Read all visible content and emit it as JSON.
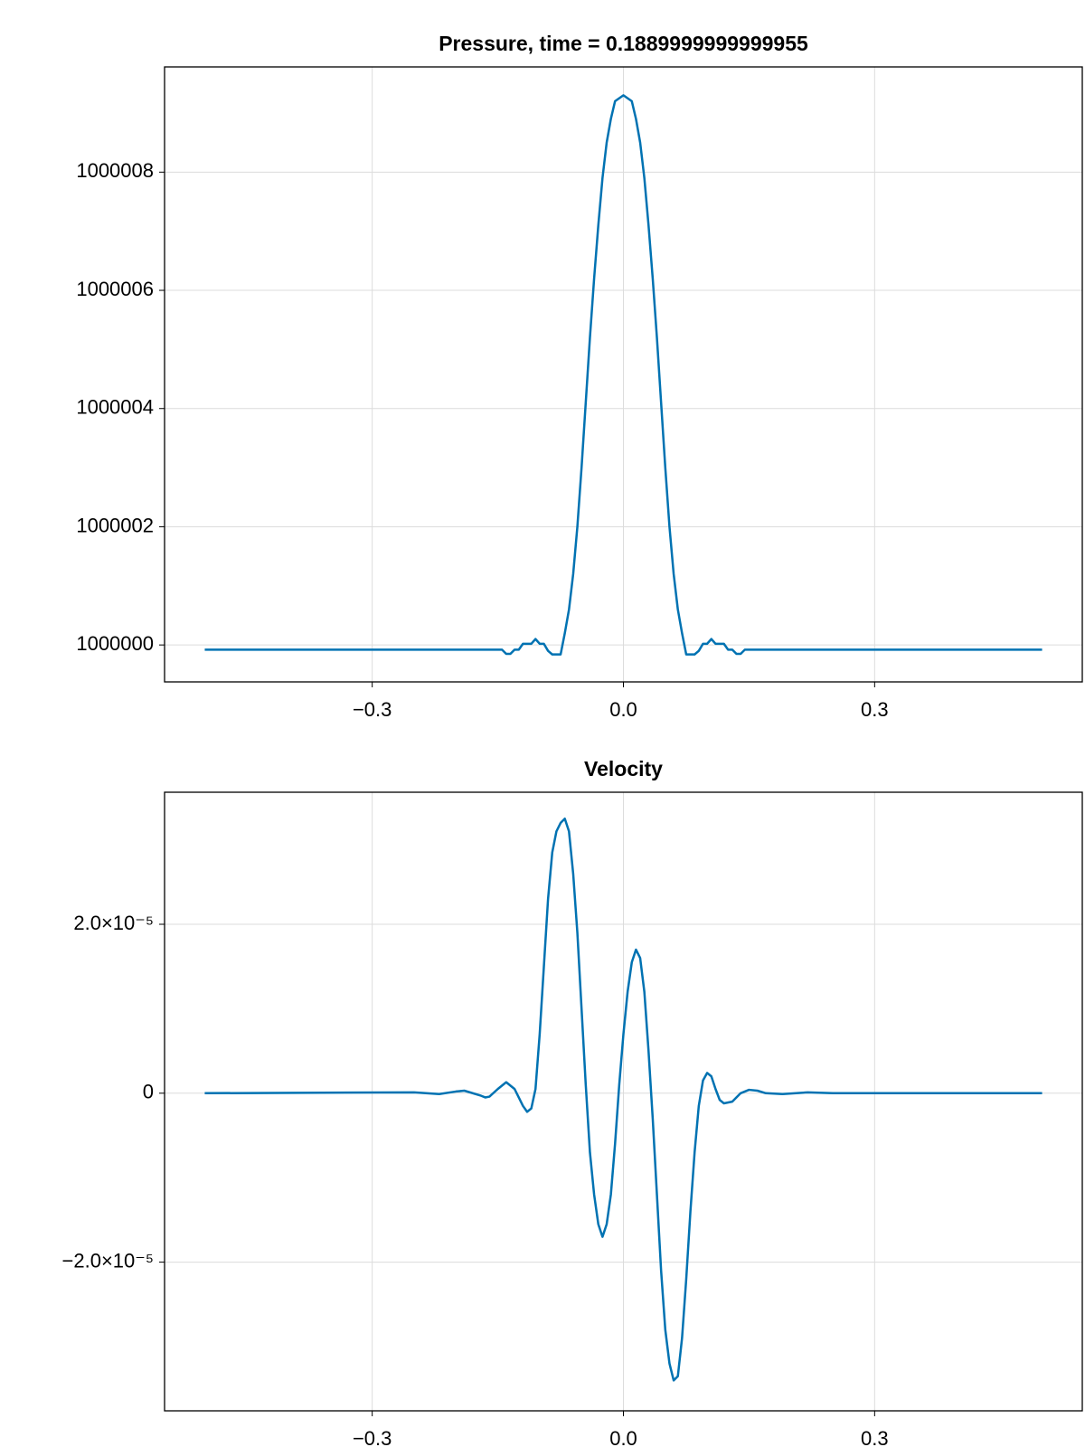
{
  "chart_data": [
    {
      "type": "line",
      "title": "Pressure, time = 0.1889999999999955",
      "color": "#0072b2",
      "grid": true,
      "xlim": [
        -0.548,
        0.548
      ],
      "xticks": [
        {
          "value": -0.3,
          "label": "−0.3"
        },
        {
          "value": 0,
          "label": "0.0"
        },
        {
          "value": 0.3,
          "label": "0.3"
        }
      ],
      "ylim": [
        999999.375,
        1000009.78
      ],
      "yticks": [
        1000000,
        1000002,
        1000004,
        1000006,
        1000008
      ],
      "x": [
        -0.5,
        -0.15,
        -0.145,
        -0.14,
        -0.135,
        -0.13,
        -0.125,
        -0.12,
        -0.115,
        -0.11,
        -0.105,
        -0.1,
        -0.095,
        -0.09,
        -0.085,
        -0.08,
        -0.075,
        -0.07,
        -0.065,
        -0.06,
        -0.055,
        -0.05,
        -0.045,
        -0.04,
        -0.035,
        -0.03,
        -0.025,
        -0.02,
        -0.015,
        -0.01,
        -0.005,
        0,
        0.005,
        0.01,
        0.015,
        0.02,
        0.025,
        0.03,
        0.035,
        0.04,
        0.045,
        0.05,
        0.055,
        0.06,
        0.065,
        0.07,
        0.075,
        0.08,
        0.085,
        0.09,
        0.095,
        0.1,
        0.105,
        0.11,
        0.115,
        0.12,
        0.125,
        0.13,
        0.135,
        0.14,
        0.145,
        0.15,
        0.5
      ],
      "values": [
        999999.92,
        999999.92,
        999999.92,
        999999.85,
        999999.85,
        999999.92,
        999999.92,
        1000000.02,
        1000000.02,
        1000000.02,
        1000000.1,
        1000000.02,
        1000000.02,
        999999.9,
        999999.84,
        999999.84,
        999999.84,
        1000000.2,
        1000000.6,
        1000001.2,
        1000002,
        1000003,
        1000004.1,
        1000005.2,
        1000006.2,
        1000007.1,
        1000007.9,
        1000008.5,
        1000008.9,
        1000009.2,
        1000009.25,
        1000009.3,
        1000009.25,
        1000009.2,
        1000008.9,
        1000008.5,
        1000007.9,
        1000007.1,
        1000006.2,
        1000005.2,
        1000004.1,
        1000003,
        1000002,
        1000001.2,
        1000000.6,
        1000000.2,
        999999.84,
        999999.84,
        999999.84,
        999999.9,
        1000000.02,
        1000000.02,
        1000000.1,
        1000000.02,
        1000000.02,
        1000000.02,
        999999.92,
        999999.92,
        999999.85,
        999999.85,
        999999.92,
        999999.92,
        999999.92
      ]
    },
    {
      "type": "line",
      "title": "Velocity",
      "color": "#0072b2",
      "grid": true,
      "xlim": [
        -0.548,
        0.548
      ],
      "xticks": [
        {
          "value": -0.3,
          "label": "−0.3"
        },
        {
          "value": 0,
          "label": "0.0"
        },
        {
          "value": 0.3,
          "label": "0.3"
        }
      ],
      "ylim": [
        -3.76e-05,
        3.563e-05
      ],
      "yticks": [
        {
          "value": -2e-05,
          "label": "−2.0×10⁻⁵"
        },
        0,
        {
          "value": 2e-05,
          "label": "2.0×10⁻⁵"
        }
      ],
      "x": [
        -0.5,
        -0.25,
        -0.22,
        -0.2,
        -0.19,
        -0.17,
        -0.165,
        -0.16,
        -0.15,
        -0.14,
        -0.13,
        -0.125,
        -0.12,
        -0.115,
        -0.11,
        -0.105,
        -0.1,
        -0.095,
        -0.09,
        -0.085,
        -0.08,
        -0.075,
        -0.07,
        -0.065,
        -0.06,
        -0.055,
        -0.05,
        -0.045,
        -0.04,
        -0.035,
        -0.03,
        -0.025,
        -0.02,
        -0.015,
        -0.01,
        -0.005,
        0,
        0.005,
        0.01,
        0.015,
        0.02,
        0.025,
        0.03,
        0.035,
        0.04,
        0.045,
        0.05,
        0.055,
        0.06,
        0.065,
        0.07,
        0.075,
        0.08,
        0.085,
        0.09,
        0.095,
        0.1,
        0.105,
        0.11,
        0.115,
        0.12,
        0.13,
        0.14,
        0.15,
        0.16,
        0.17,
        0.19,
        0.22,
        0.25,
        0.5
      ],
      "values": [
        0,
        1e-07,
        -1e-07,
        2e-07,
        3e-07,
        -3e-07,
        -5e-07,
        -4e-07,
        5e-07,
        1.3e-06,
        5e-07,
        -5e-07,
        -1.5e-06,
        -2.2e-06,
        -1.8e-06,
        5e-07,
        7e-06,
        1.5e-05,
        2.3e-05,
        2.85e-05,
        3.1e-05,
        3.2e-05,
        3.25e-05,
        3.1e-05,
        2.6e-05,
        1.9e-05,
        1e-05,
        1e-06,
        -7e-06,
        -1.2e-05,
        -1.55e-05,
        -1.7e-05,
        -1.55e-05,
        -1.2e-05,
        -6e-06,
        1e-06,
        7e-06,
        1.2e-05,
        1.55e-05,
        1.7e-05,
        1.6e-05,
        1.2e-05,
        5e-06,
        -3e-06,
        -1.2e-05,
        -2.1e-05,
        -2.8e-05,
        -3.2e-05,
        -3.4e-05,
        -3.35e-05,
        -2.9e-05,
        -2.2e-05,
        -1.4e-05,
        -7e-06,
        -1.5e-06,
        1.5e-06,
        2.4e-06,
        2e-06,
        5e-07,
        -8e-07,
        -1.2e-06,
        -1e-06,
        0,
        4e-07,
        3e-07,
        0,
        -1e-07,
        1e-07,
        0,
        0
      ]
    }
  ]
}
